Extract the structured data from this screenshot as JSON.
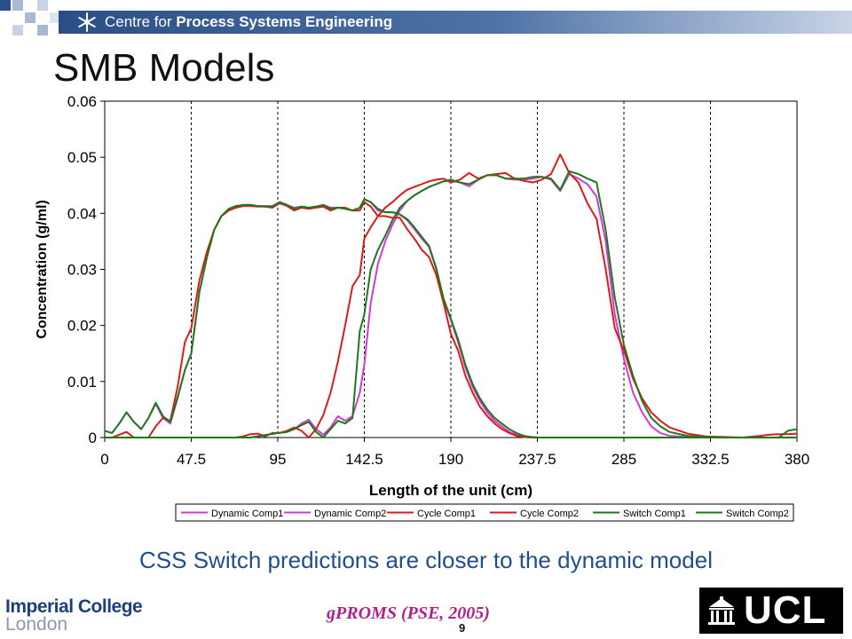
{
  "header": {
    "org_prefix": "Centre for ",
    "org_bold": "Process Systems Engineering"
  },
  "slide": {
    "title": "SMB Models",
    "caption": "CSS Switch predictions are closer to the dynamic model",
    "citation": "gPROMS (PSE, 2005)",
    "page_number": "9"
  },
  "footer": {
    "imperial_line1": "Imperial College",
    "imperial_line2": "London",
    "ucl_text": "UCL"
  },
  "colors": {
    "header_blue": "#2a4f86",
    "caption_blue": "#1f4e8c",
    "dynamic": "#d23ad2",
    "cycle": "#dd1a1a",
    "switch": "#1c7a1c"
  },
  "chart_data": {
    "type": "line",
    "xlabel": "Length of the unit (cm)",
    "ylabel": "Concentration (g/ml)",
    "xlim": [
      0,
      380
    ],
    "ylim": [
      0,
      0.06
    ],
    "xticks": [
      0,
      47.5,
      95,
      142.5,
      190,
      237.5,
      285,
      332.5,
      380
    ],
    "xtick_labels": [
      "0",
      "47.5",
      "95",
      "142.5",
      "190",
      "237.5",
      "285",
      "332.5",
      "380"
    ],
    "yticks": [
      0,
      0.01,
      0.02,
      0.03,
      0.04,
      0.05,
      0.06
    ],
    "ytick_labels": [
      "0",
      "0.01",
      "0.02",
      "0.03",
      "0.04",
      "0.05",
      "0.06"
    ],
    "vertical_dashed_lines_at": [
      47.5,
      95,
      142.5,
      190,
      237.5,
      285,
      332.5
    ],
    "grid": false,
    "legend_position": "bottom",
    "series": [
      {
        "name": "Dynamic Comp1",
        "color": "#d23ad2",
        "x": [
          0,
          4,
          8,
          12,
          16,
          20,
          24,
          28,
          32,
          36,
          40,
          44,
          47.5,
          52,
          56,
          60,
          64,
          68,
          72,
          76,
          80,
          84,
          88,
          92,
          96,
          100,
          104,
          108,
          112,
          116,
          120,
          124,
          128,
          132,
          136,
          140,
          142.5,
          146,
          150,
          154,
          158,
          162,
          166,
          170,
          174,
          178,
          182,
          186,
          190,
          194,
          198,
          202,
          206,
          210,
          214,
          218,
          222,
          226,
          230,
          234,
          238,
          242,
          246,
          250,
          254,
          258,
          262,
          266,
          270,
          274,
          278,
          282,
          285,
          290,
          295,
          300,
          305,
          310,
          320,
          330,
          340,
          350,
          360,
          370,
          380
        ],
        "y": [
          0.0012,
          0.0008,
          0.0025,
          0.0045,
          0.0028,
          0.0015,
          0.0035,
          0.006,
          0.0035,
          0.0025,
          0.007,
          0.012,
          0.015,
          0.026,
          0.032,
          0.037,
          0.0395,
          0.0405,
          0.041,
          0.0415,
          0.0415,
          0.0413,
          0.0413,
          0.0413,
          0.042,
          0.0415,
          0.041,
          0.0412,
          0.041,
          0.0412,
          0.0415,
          0.041,
          0.041,
          0.0408,
          0.0405,
          0.041,
          0.0425,
          0.042,
          0.0405,
          0.0402,
          0.0402,
          0.0398,
          0.0388,
          0.0372,
          0.0355,
          0.034,
          0.03,
          0.0245,
          0.021,
          0.017,
          0.0125,
          0.009,
          0.0065,
          0.0045,
          0.003,
          0.002,
          0.001,
          0.0005,
          0.0002,
          0.0001,
          0.0,
          0.0,
          0.0,
          0.0,
          0.0,
          0.0,
          0.0,
          0.0,
          0.0,
          0.0,
          0.0,
          0.0,
          0.0,
          0.0,
          0.0,
          0.0,
          0.0,
          0.0,
          0.0,
          0.0,
          0.0,
          0.0,
          0.0,
          0.0,
          0.0
        ]
      },
      {
        "name": "Dynamic Comp2",
        "color": "#d23ad2",
        "x": [
          0,
          40,
          80,
          95,
          100,
          104,
          108,
          112,
          116,
          120,
          124,
          128,
          132,
          136,
          140,
          142.5,
          146,
          150,
          154,
          158,
          162,
          166,
          170,
          174,
          178,
          182,
          186,
          190,
          195,
          200,
          205,
          210,
          215,
          220,
          225,
          230,
          235,
          240,
          245,
          250,
          255,
          260,
          265,
          270,
          275,
          280,
          285,
          290,
          295,
          300,
          305,
          310,
          320,
          330,
          340,
          350,
          360,
          370,
          375,
          380
        ],
        "y": [
          0.0,
          0.0,
          0.0,
          0.0008,
          0.001,
          0.0015,
          0.0025,
          0.0032,
          0.0015,
          0.0005,
          0.0018,
          0.0038,
          0.003,
          0.0038,
          0.008,
          0.013,
          0.024,
          0.031,
          0.035,
          0.038,
          0.0405,
          0.0422,
          0.0432,
          0.044,
          0.0447,
          0.0452,
          0.0457,
          0.0458,
          0.0455,
          0.0448,
          0.046,
          0.0468,
          0.0468,
          0.0462,
          0.046,
          0.046,
          0.0462,
          0.0465,
          0.046,
          0.044,
          0.047,
          0.0462,
          0.0452,
          0.043,
          0.035,
          0.022,
          0.014,
          0.008,
          0.0045,
          0.002,
          0.0008,
          0.0003,
          0.0001,
          0.0,
          0.0,
          0.0,
          0.0,
          0.0,
          0.0,
          0.0
        ]
      },
      {
        "name": "Cycle Comp1",
        "color": "#dd1a1a",
        "x": [
          0,
          4,
          8,
          12,
          16,
          20,
          24,
          28,
          32,
          36,
          40,
          44,
          47.5,
          52,
          56,
          60,
          64,
          68,
          72,
          76,
          80,
          84,
          88,
          92,
          96,
          100,
          104,
          108,
          112,
          116,
          120,
          124,
          128,
          132,
          136,
          140,
          142.5,
          146,
          150,
          154,
          158,
          162,
          166,
          170,
          174,
          178,
          182,
          186,
          190,
          194,
          198,
          202,
          206,
          210,
          214,
          218,
          222,
          226,
          230,
          234,
          238,
          242,
          246,
          250,
          254,
          258,
          262,
          266,
          270,
          274,
          278,
          282,
          285,
          290,
          295,
          300,
          305,
          310,
          320,
          330,
          340,
          350,
          360,
          370,
          380
        ],
        "y": [
          0.0,
          0.0,
          0.0005,
          0.001,
          0.0,
          0.0,
          0.0,
          0.002,
          0.0035,
          0.003,
          0.009,
          0.017,
          0.0195,
          0.028,
          0.033,
          0.037,
          0.0395,
          0.0405,
          0.041,
          0.0413,
          0.0413,
          0.0412,
          0.0412,
          0.041,
          0.0418,
          0.0413,
          0.0405,
          0.041,
          0.0408,
          0.041,
          0.0412,
          0.0405,
          0.041,
          0.041,
          0.0405,
          0.0405,
          0.042,
          0.0412,
          0.0395,
          0.0395,
          0.0392,
          0.0392,
          0.0372,
          0.0355,
          0.0335,
          0.0322,
          0.029,
          0.024,
          0.0185,
          0.0155,
          0.011,
          0.008,
          0.0055,
          0.0038,
          0.0025,
          0.0015,
          0.0008,
          0.0003,
          0.0001,
          0.0,
          0.0,
          0.0,
          0.0,
          0.0,
          0.0,
          0.0,
          0.0,
          0.0,
          0.0,
          0.0,
          0.0,
          0.0,
          0.0,
          0.0,
          0.0,
          0.0,
          0.0,
          0.0,
          0.0,
          0.0,
          0.0,
          0.0,
          0.0,
          0.0,
          0.0
        ]
      },
      {
        "name": "Cycle Comp2",
        "color": "#dd1a1a",
        "x": [
          0,
          40,
          72,
          76,
          80,
          84,
          88,
          92,
          96,
          100,
          104,
          108,
          112,
          116,
          120,
          124,
          128,
          132,
          136,
          140,
          142.5,
          146,
          150,
          154,
          158,
          162,
          166,
          170,
          174,
          178,
          182,
          186,
          190,
          195,
          200,
          205,
          210,
          215,
          220,
          225,
          230,
          235,
          240,
          245,
          250,
          255,
          260,
          265,
          270,
          275,
          280,
          285,
          290,
          295,
          300,
          305,
          310,
          320,
          330,
          340,
          350,
          360,
          365,
          370,
          375,
          380
        ],
        "y": [
          0.0,
          0.0,
          0.0,
          0.0002,
          0.0006,
          0.0007,
          0.0002,
          0.0008,
          0.0008,
          0.0012,
          0.0018,
          0.0012,
          0.0,
          0.0015,
          0.004,
          0.008,
          0.0135,
          0.02,
          0.027,
          0.029,
          0.0355,
          0.0375,
          0.0395,
          0.041,
          0.042,
          0.0432,
          0.0442,
          0.0447,
          0.0452,
          0.0457,
          0.046,
          0.0462,
          0.0455,
          0.046,
          0.0472,
          0.0462,
          0.0468,
          0.047,
          0.0472,
          0.0462,
          0.0458,
          0.0455,
          0.046,
          0.047,
          0.0505,
          0.0472,
          0.0455,
          0.0418,
          0.039,
          0.03,
          0.0195,
          0.0155,
          0.0105,
          0.007,
          0.0045,
          0.003,
          0.0018,
          0.0007,
          0.0002,
          0.0001,
          0.0,
          0.0003,
          0.0005,
          0.0006,
          0.0006,
          0.0007
        ]
      },
      {
        "name": "Switch Comp1",
        "color": "#1c7a1c",
        "x": [
          0,
          4,
          8,
          12,
          16,
          20,
          24,
          28,
          32,
          36,
          40,
          44,
          47.5,
          52,
          56,
          60,
          64,
          68,
          72,
          76,
          80,
          84,
          88,
          92,
          96,
          100,
          104,
          108,
          112,
          116,
          120,
          124,
          128,
          132,
          136,
          140,
          142.5,
          146,
          150,
          154,
          158,
          162,
          166,
          170,
          174,
          178,
          182,
          186,
          190,
          194,
          198,
          202,
          206,
          210,
          214,
          218,
          222,
          226,
          230,
          234,
          238,
          242,
          246,
          250,
          254,
          258,
          262,
          266,
          270,
          274,
          278,
          282,
          285,
          290,
          295,
          300,
          305,
          310,
          320,
          330,
          340,
          350,
          360,
          370,
          380
        ],
        "y": [
          0.0012,
          0.0008,
          0.0025,
          0.0045,
          0.0028,
          0.0015,
          0.0035,
          0.0062,
          0.0038,
          0.0028,
          0.0072,
          0.012,
          0.015,
          0.026,
          0.032,
          0.037,
          0.0395,
          0.0408,
          0.0413,
          0.0415,
          0.0415,
          0.0413,
          0.0412,
          0.0412,
          0.042,
          0.0415,
          0.0408,
          0.0412,
          0.041,
          0.0412,
          0.0415,
          0.0408,
          0.041,
          0.0408,
          0.0405,
          0.041,
          0.0425,
          0.042,
          0.0408,
          0.0402,
          0.0402,
          0.0398,
          0.039,
          0.0375,
          0.0358,
          0.0342,
          0.0302,
          0.0248,
          0.0212,
          0.0175,
          0.013,
          0.0095,
          0.007,
          0.005,
          0.0035,
          0.0025,
          0.0015,
          0.0008,
          0.0003,
          0.0001,
          0.0,
          0.0,
          0.0,
          0.0,
          0.0,
          0.0,
          0.0,
          0.0,
          0.0,
          0.0,
          0.0,
          0.0,
          0.0,
          0.0,
          0.0,
          0.0,
          0.0,
          0.0,
          0.0,
          0.0,
          0.0,
          0.0,
          0.0,
          0.0,
          0.0
        ]
      },
      {
        "name": "Switch Comp2",
        "color": "#1c7a1c",
        "x": [
          0,
          40,
          80,
          95,
          100,
          104,
          108,
          112,
          116,
          120,
          124,
          128,
          132,
          136,
          140,
          142.5,
          146,
          150,
          154,
          158,
          162,
          166,
          170,
          174,
          178,
          182,
          186,
          190,
          195,
          200,
          205,
          210,
          215,
          220,
          225,
          230,
          235,
          240,
          245,
          250,
          255,
          260,
          265,
          270,
          275,
          280,
          285,
          290,
          295,
          300,
          305,
          310,
          320,
          330,
          340,
          350,
          360,
          365,
          370,
          375,
          380
        ],
        "y": [
          0.0,
          0.0,
          0.0,
          0.0008,
          0.001,
          0.0015,
          0.0022,
          0.0028,
          0.001,
          0.0,
          0.0015,
          0.003,
          0.0025,
          0.0035,
          0.019,
          0.022,
          0.03,
          0.0335,
          0.036,
          0.0388,
          0.041,
          0.0422,
          0.0432,
          0.044,
          0.0447,
          0.0452,
          0.0457,
          0.046,
          0.0455,
          0.0452,
          0.046,
          0.0468,
          0.0468,
          0.0462,
          0.0462,
          0.0462,
          0.0465,
          0.0465,
          0.0462,
          0.0442,
          0.0475,
          0.047,
          0.0462,
          0.0455,
          0.037,
          0.025,
          0.0165,
          0.011,
          0.0065,
          0.0035,
          0.002,
          0.001,
          0.0003,
          0.0001,
          0.0,
          0.0,
          0.0,
          0.0,
          0.0,
          0.0012,
          0.0015
        ]
      }
    ]
  }
}
